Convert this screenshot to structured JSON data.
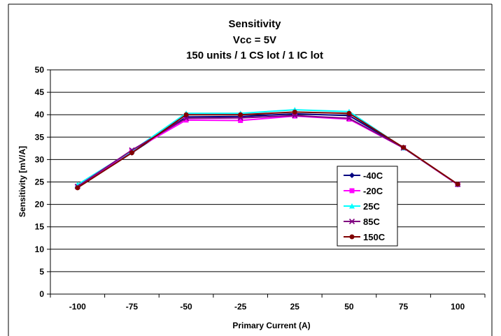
{
  "chart_data": {
    "type": "line",
    "title_lines": [
      "Sensitivity",
      "Vcc = 5V",
      "150 units / 1 CS lot / 1 IC lot"
    ],
    "xlabel": "Primary Current (A)",
    "ylabel": "Sensitivity [mV/A]",
    "categories": [
      "-100",
      "-75",
      "-50",
      "-25",
      "25",
      "50",
      "75",
      "100"
    ],
    "ylim": [
      0,
      50
    ],
    "yticks": [
      0,
      5,
      10,
      15,
      20,
      25,
      30,
      35,
      40,
      45,
      50
    ],
    "grid": "horizontal major gridlines",
    "legend": "right-inside",
    "series": [
      {
        "name": "-40C",
        "color": "#000080",
        "marker": "diamond",
        "values": [
          23.8,
          31.5,
          39.5,
          39.6,
          40.2,
          39.8,
          32.7,
          24.4
        ]
      },
      {
        "name": "-20C",
        "color": "#ff00ff",
        "marker": "square",
        "values": [
          24.0,
          31.9,
          38.8,
          38.7,
          39.7,
          39.0,
          32.6,
          24.4
        ]
      },
      {
        "name": "25C",
        "color": "#00ffff",
        "marker": "triangle",
        "values": [
          24.4,
          31.9,
          40.3,
          40.3,
          41.1,
          40.7,
          32.6,
          24.5
        ]
      },
      {
        "name": "85C",
        "color": "#800080",
        "marker": "x",
        "values": [
          24.0,
          32.1,
          39.2,
          39.3,
          39.8,
          39.2,
          32.6,
          24.5
        ]
      },
      {
        "name": "150C",
        "color": "#800000",
        "marker": "circle",
        "values": [
          23.7,
          31.5,
          40.0,
          40.0,
          40.6,
          40.3,
          32.7,
          24.5
        ]
      }
    ]
  }
}
